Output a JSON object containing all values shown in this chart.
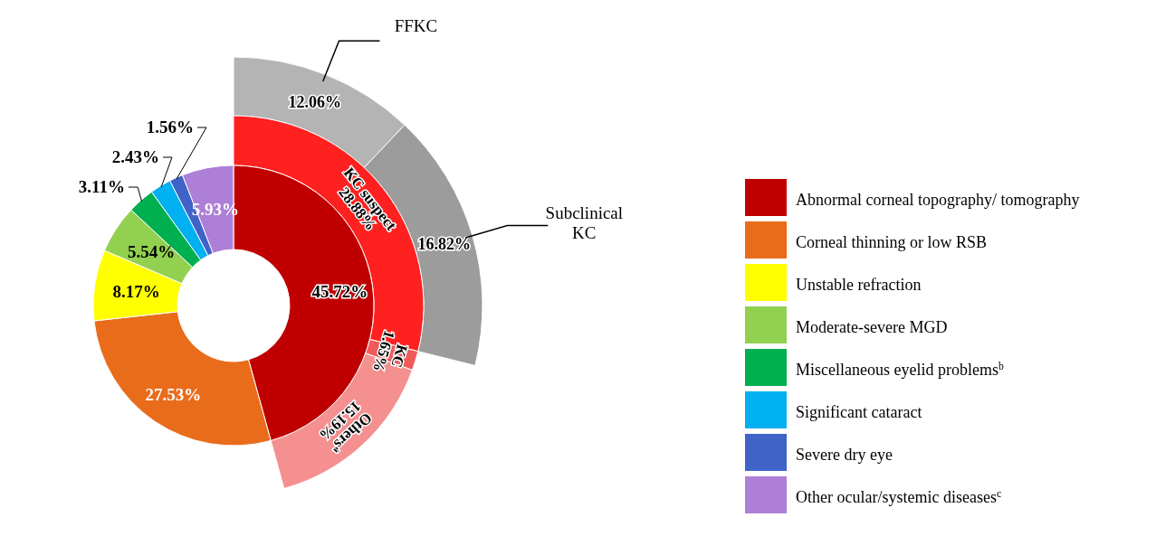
{
  "chart_data": [
    {
      "type": "donut",
      "legend": "right",
      "categories": [
        "Abnormal corneal topography/ tomography",
        "Corneal thinning or low RSB",
        "Unstable refraction",
        "Moderate-severe MGD",
        "Miscellaneous eyelid problems$^{b}$",
        "Significant cataract",
        "Severe dry eye",
        "Other ocular/systemic diseases$^{c}$"
      ],
      "values": [
        45.72,
        27.53,
        8.17,
        5.54,
        3.11,
        2.43,
        1.56,
        5.93
      ],
      "colors": [
        "#c00000",
        "#e96c1a",
        "#ffff00",
        "#92d050",
        "#00b050",
        "#00b0f0",
        "#4063c8",
        "#ad7fd6"
      ],
      "value_labels": [
        "45.72%",
        "27.53%",
        "8.17%",
        "5.54%",
        "3.11%",
        "2.43%",
        "1.56%",
        "5.93%"
      ]
    },
    {
      "type": "donut",
      "categories": [
        "KC suspect",
        "KC",
        "Others$^{a}$"
      ],
      "values": [
        28.88,
        1.65,
        15.19
      ],
      "colors": [
        "#ff2020",
        "#f25a5a",
        "#f59090"
      ],
      "value_labels": [
        "28.88%",
        "1.65%",
        "15.19%"
      ]
    },
    {
      "type": "donut",
      "categories": [
        "FFKC",
        "Subclinical KC"
      ],
      "values": [
        12.06,
        16.82
      ],
      "colors": [
        "#b4b4b4",
        "#9c9c9c"
      ],
      "value_labels": [
        "12.06%",
        "16.82%"
      ]
    }
  ]
}
